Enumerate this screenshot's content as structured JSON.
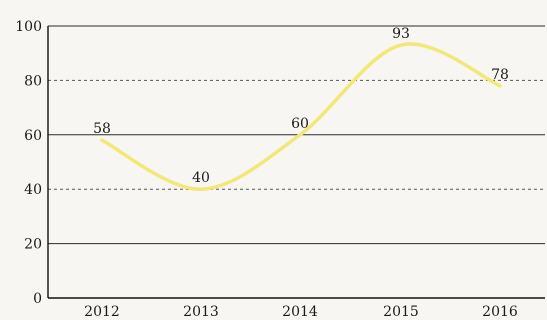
{
  "chart_data": {
    "type": "line",
    "categories": [
      "2012",
      "2013",
      "2014",
      "2015",
      "2016"
    ],
    "series": [
      {
        "values": [
          58,
          40,
          60,
          93,
          78
        ],
        "color": "#f2e878"
      }
    ],
    "data_labels": [
      "58",
      "40",
      "60",
      "93",
      "78"
    ],
    "title": "",
    "xlabel": "",
    "ylabel": "",
    "ylim": [
      0,
      100
    ],
    "yticks": [
      0,
      20,
      40,
      60,
      80,
      100
    ],
    "ytick_labels": [
      "0",
      "20",
      "40",
      "60",
      "80",
      "100"
    ],
    "grid": true,
    "smooth": true
  }
}
